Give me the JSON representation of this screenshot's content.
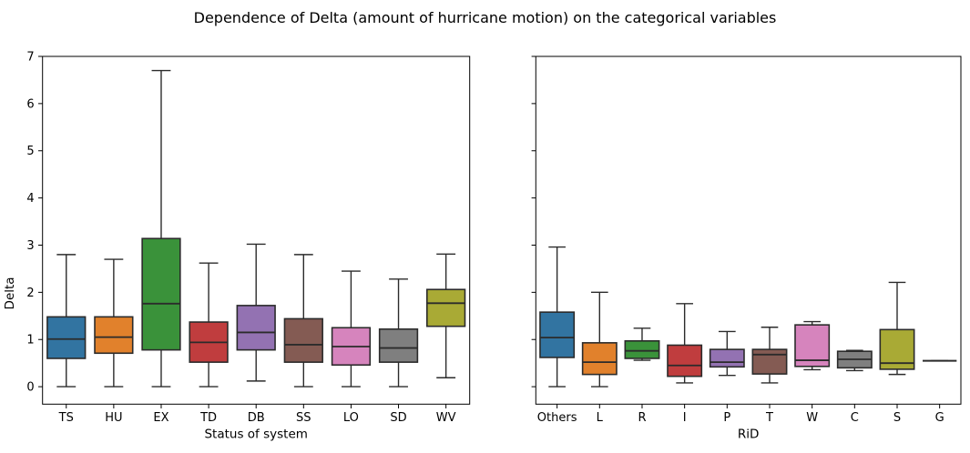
{
  "figure": {
    "title": "Dependence of Delta (amount of hurricane motion) on the categorical variables"
  },
  "style": {
    "background": "#ffffff",
    "spine_color": "#000000",
    "box_edge_color": "#2b2b2b",
    "whisker_color": "#2b2b2b",
    "median_color": "#2b2b2b"
  },
  "chart_data": [
    {
      "type": "boxplot",
      "panel": "left",
      "xlabel": "Status of system",
      "ylabel": "Delta",
      "ylim": [
        -0.37,
        7.0
      ],
      "yticks": [
        0,
        1,
        2,
        3,
        4,
        5,
        6,
        7
      ],
      "show_ytick_labels": true,
      "grid": false,
      "categories": [
        "TS",
        "HU",
        "EX",
        "TD",
        "DB",
        "SS",
        "LO",
        "SD",
        "WV"
      ],
      "boxes": [
        {
          "label": "TS",
          "color": "#3274a1",
          "whislo": 0.0,
          "q1": 0.6,
          "med": 1.01,
          "q3": 1.48,
          "whishi": 2.8
        },
        {
          "label": "HU",
          "color": "#e1812c",
          "whislo": 0.0,
          "q1": 0.71,
          "med": 1.05,
          "q3": 1.48,
          "whishi": 2.7
        },
        {
          "label": "EX",
          "color": "#3a923a",
          "whislo": 0.0,
          "q1": 0.78,
          "med": 1.76,
          "q3": 3.14,
          "whishi": 6.7
        },
        {
          "label": "TD",
          "color": "#c03d3e",
          "whislo": 0.0,
          "q1": 0.52,
          "med": 0.94,
          "q3": 1.37,
          "whishi": 2.62
        },
        {
          "label": "DB",
          "color": "#9372b2",
          "whislo": 0.12,
          "q1": 0.78,
          "med": 1.15,
          "q3": 1.72,
          "whishi": 3.02
        },
        {
          "label": "SS",
          "color": "#845b53",
          "whislo": 0.0,
          "q1": 0.52,
          "med": 0.89,
          "q3": 1.44,
          "whishi": 2.8
        },
        {
          "label": "LO",
          "color": "#d684bd",
          "whislo": 0.0,
          "q1": 0.46,
          "med": 0.85,
          "q3": 1.25,
          "whishi": 2.45
        },
        {
          "label": "SD",
          "color": "#7f7f7f",
          "whislo": 0.0,
          "q1": 0.52,
          "med": 0.82,
          "q3": 1.22,
          "whishi": 2.28
        },
        {
          "label": "WV",
          "color": "#a9aa35",
          "whislo": 0.19,
          "q1": 1.28,
          "med": 1.77,
          "q3": 2.06,
          "whishi": 2.81
        }
      ]
    },
    {
      "type": "boxplot",
      "panel": "right",
      "xlabel": "RiD",
      "ylabel": "",
      "ylim": [
        -0.37,
        7.0
      ],
      "yticks": [
        0,
        1,
        2,
        3,
        4,
        5,
        6,
        7
      ],
      "show_ytick_labels": false,
      "grid": false,
      "categories": [
        "Others",
        "L",
        "R",
        "I",
        "P",
        "T",
        "W",
        "C",
        "S",
        "G"
      ],
      "boxes": [
        {
          "label": "Others",
          "color": "#3274a1",
          "whislo": 0.0,
          "q1": 0.62,
          "med": 1.04,
          "q3": 1.58,
          "whishi": 2.96
        },
        {
          "label": "L",
          "color": "#e1812c",
          "whislo": 0.0,
          "q1": 0.26,
          "med": 0.52,
          "q3": 0.93,
          "whishi": 2.0
        },
        {
          "label": "R",
          "color": "#3a923a",
          "whislo": 0.56,
          "q1": 0.6,
          "med": 0.76,
          "q3": 0.97,
          "whishi": 1.24
        },
        {
          "label": "I",
          "color": "#c03d3e",
          "whislo": 0.08,
          "q1": 0.22,
          "med": 0.45,
          "q3": 0.88,
          "whishi": 1.76
        },
        {
          "label": "P",
          "color": "#9372b2",
          "whislo": 0.24,
          "q1": 0.42,
          "med": 0.52,
          "q3": 0.79,
          "whishi": 1.17
        },
        {
          "label": "T",
          "color": "#845b53",
          "whislo": 0.08,
          "q1": 0.27,
          "med": 0.68,
          "q3": 0.79,
          "whishi": 1.26
        },
        {
          "label": "W",
          "color": "#d684bd",
          "whislo": 0.36,
          "q1": 0.43,
          "med": 0.56,
          "q3": 1.31,
          "whishi": 1.38
        },
        {
          "label": "C",
          "color": "#7f7f7f",
          "whislo": 0.34,
          "q1": 0.4,
          "med": 0.58,
          "q3": 0.75,
          "whishi": 0.77
        },
        {
          "label": "S",
          "color": "#a9aa35",
          "whislo": 0.26,
          "q1": 0.37,
          "med": 0.5,
          "q3": 1.21,
          "whishi": 2.21
        },
        {
          "label": "G",
          "color": "#2eabb8",
          "whislo": 0.55,
          "q1": 0.55,
          "med": 0.55,
          "q3": 0.55,
          "whishi": 0.55
        }
      ]
    }
  ]
}
